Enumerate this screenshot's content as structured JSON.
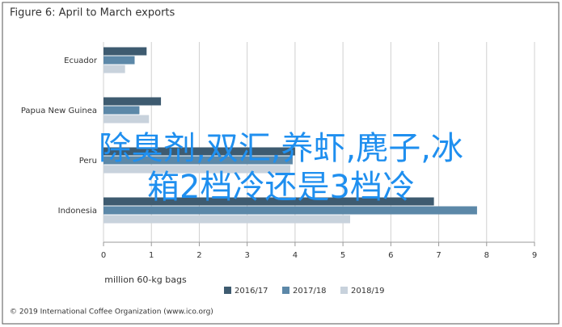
{
  "chart_data": {
    "type": "bar",
    "orientation": "horizontal",
    "title": "Figure 6: April to March exports",
    "x_label": "million 60-kg bags",
    "footer": "© 2019 International Coffee Organization (www.ico.org)",
    "categories": [
      "Ecuador",
      "Papua New Guinea",
      "Peru",
      "Indonesia"
    ],
    "series": [
      {
        "name": "2016/17",
        "color": "#3e5b70",
        "values": [
          0.9,
          1.2,
          4.0,
          6.9
        ]
      },
      {
        "name": "2017/18",
        "color": "#5c88a8",
        "values": [
          0.65,
          0.75,
          3.95,
          7.8
        ]
      },
      {
        "name": "2018/19",
        "color": "#c8d2dc",
        "values": [
          0.45,
          0.95,
          3.9,
          5.15
        ]
      }
    ],
    "xlim": [
      0,
      9
    ],
    "xticks": [
      0,
      1,
      2,
      3,
      4,
      5,
      6,
      7,
      8,
      9
    ],
    "grid": true,
    "legend": "bottom"
  },
  "overlay_text": "除臭剂,双汇,养虾,麂子,冰箱2档冷还是3档冷"
}
